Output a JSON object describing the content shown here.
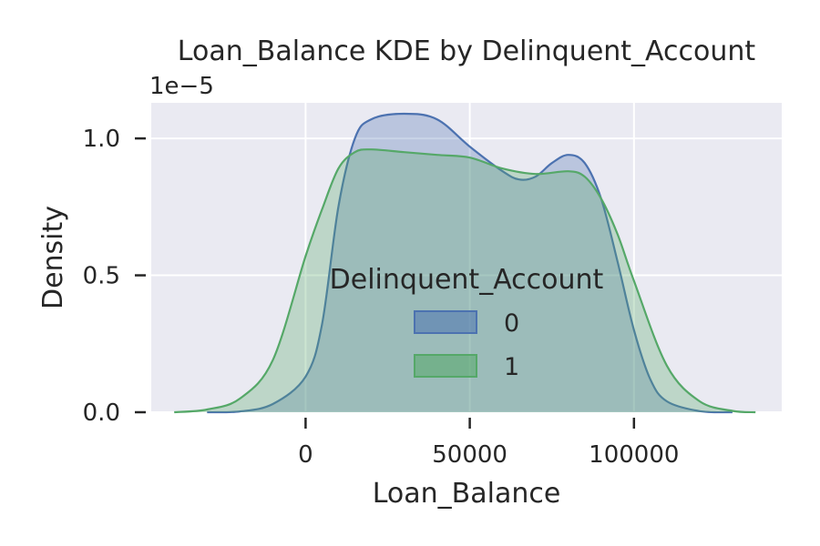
{
  "chart_data": {
    "type": "area",
    "title": "Loan_Balance KDE by Delinquent_Account",
    "xlabel": "Loan_Balance",
    "ylabel": "Density",
    "y_offset_label": "1e−5",
    "xlim": [
      -47000,
      145000
    ],
    "ylim": [
      0,
      1.13
    ],
    "x_ticks": [
      0,
      50000,
      100000
    ],
    "x_tick_labels": [
      "0",
      "50000",
      "100000"
    ],
    "y_ticks": [
      0,
      0.5,
      1.0
    ],
    "y_tick_labels": [
      "0.0",
      "0.5",
      "1.0"
    ],
    "grid": true,
    "legend": {
      "title": "Delinquent_Account",
      "placement": "center"
    },
    "series": [
      {
        "name": "0",
        "color": "#4c72b0",
        "x": [
          -30000,
          -20000,
          -10000,
          0,
          5000,
          10000,
          15000,
          20000,
          30000,
          40000,
          50000,
          60000,
          65000,
          70000,
          75000,
          80000,
          85000,
          90000,
          95000,
          100000,
          105000,
          110000,
          120000,
          130000
        ],
        "y": [
          0.0,
          0.003,
          0.03,
          0.13,
          0.32,
          0.75,
          1.0,
          1.07,
          1.09,
          1.07,
          0.97,
          0.88,
          0.85,
          0.86,
          0.91,
          0.94,
          0.91,
          0.78,
          0.55,
          0.3,
          0.12,
          0.04,
          0.004,
          0.0
        ]
      },
      {
        "name": "1",
        "color": "#55a868",
        "x": [
          -40000,
          -30000,
          -20000,
          -10000,
          0,
          5000,
          10000,
          15000,
          20000,
          30000,
          40000,
          50000,
          60000,
          70000,
          80000,
          85000,
          90000,
          95000,
          100000,
          110000,
          120000,
          130000,
          137000
        ],
        "y": [
          0.0,
          0.01,
          0.05,
          0.19,
          0.57,
          0.74,
          0.89,
          0.95,
          0.96,
          0.95,
          0.94,
          0.93,
          0.89,
          0.87,
          0.88,
          0.86,
          0.78,
          0.65,
          0.48,
          0.17,
          0.04,
          0.005,
          0.0
        ]
      }
    ]
  }
}
